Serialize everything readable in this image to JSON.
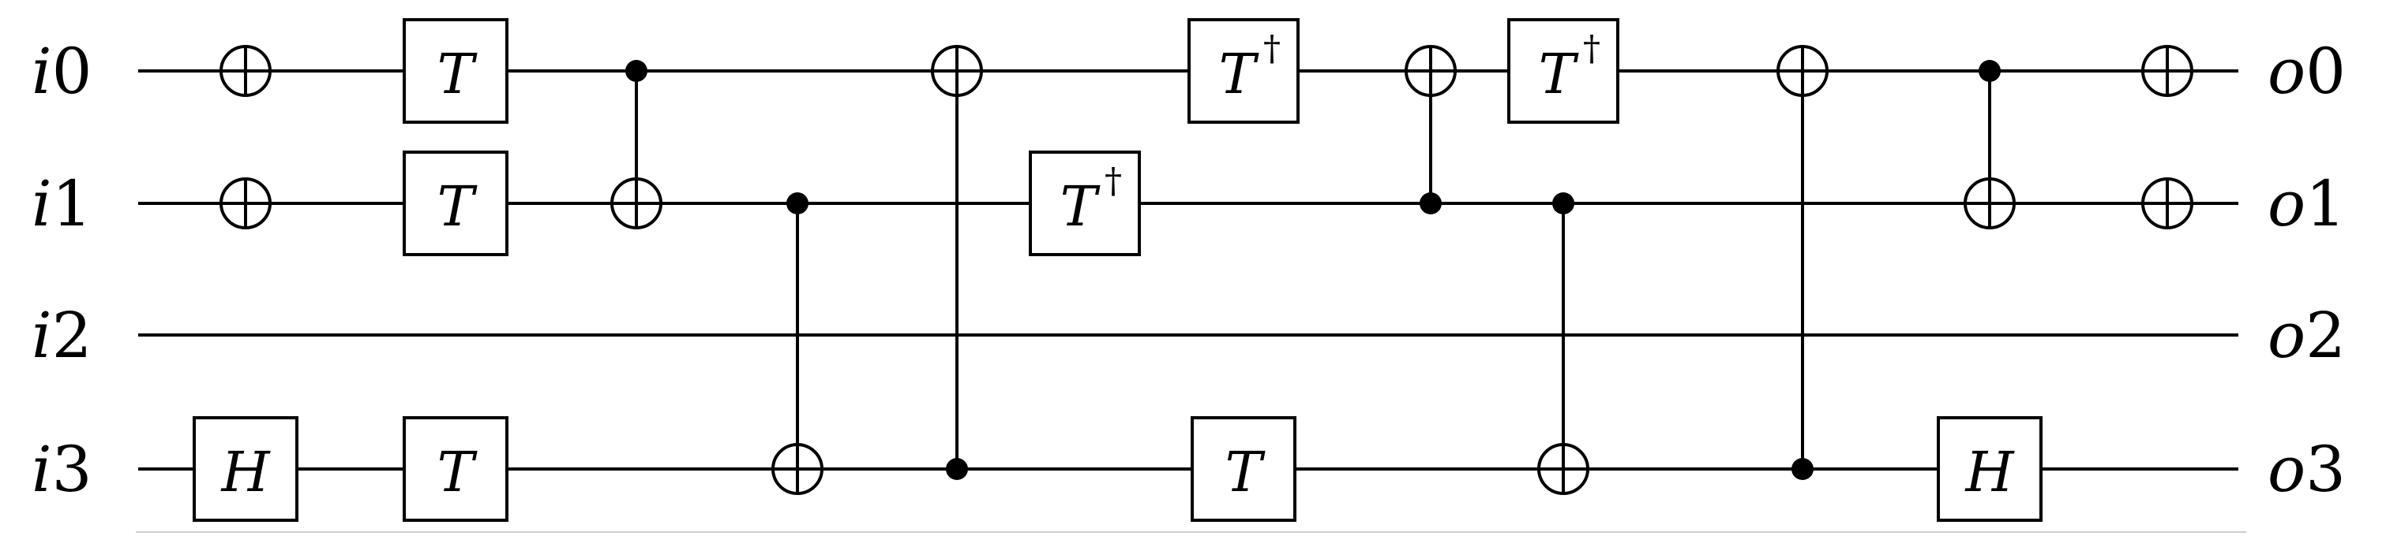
{
  "inputs": [
    "i0",
    "i1",
    "i2",
    "i3"
  ],
  "outputs": [
    "o0",
    "o1",
    "o2",
    "o3"
  ],
  "gates": [
    {
      "col": 0,
      "kind": "x",
      "target": 0
    },
    {
      "col": 0,
      "kind": "x",
      "target": 1
    },
    {
      "col": 0,
      "kind": "box",
      "target": 3,
      "label": "H"
    },
    {
      "col": 1,
      "kind": "box",
      "target": 0,
      "label": "T"
    },
    {
      "col": 1,
      "kind": "box",
      "target": 1,
      "label": "T"
    },
    {
      "col": 1,
      "kind": "box",
      "target": 3,
      "label": "T"
    },
    {
      "col": 2,
      "kind": "cnot",
      "control": 0,
      "target": 1
    },
    {
      "col": 3,
      "kind": "cnot",
      "control": 1,
      "target": 3
    },
    {
      "col": 4,
      "kind": "cnot",
      "control": 3,
      "target": 0
    },
    {
      "col": 5,
      "kind": "box",
      "target": 1,
      "label": "T",
      "dagger": true
    },
    {
      "col": 6,
      "kind": "box",
      "target": 0,
      "label": "T",
      "dagger": true
    },
    {
      "col": 6,
      "kind": "box",
      "target": 3,
      "label": "T"
    },
    {
      "col": 7,
      "kind": "cnot",
      "control": 1,
      "target": 0
    },
    {
      "col": 8,
      "kind": "box",
      "target": 0,
      "label": "T",
      "dagger": true
    },
    {
      "col": 8,
      "kind": "cnot",
      "control": 1,
      "target": 3
    },
    {
      "col": 9,
      "kind": "cnot",
      "control": 3,
      "target": 0
    },
    {
      "col": 10,
      "kind": "cnot",
      "control": 0,
      "target": 1
    },
    {
      "col": 10,
      "kind": "box",
      "target": 3,
      "label": "H"
    },
    {
      "col": 11,
      "kind": "x",
      "target": 0
    },
    {
      "col": 11,
      "kind": "x",
      "target": 1
    }
  ],
  "dagger_symbol": "†"
}
